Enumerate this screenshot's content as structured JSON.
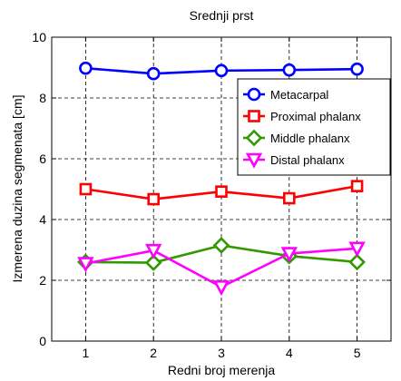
{
  "chart_data": {
    "type": "line",
    "title": "Srednji prst",
    "xlabel": "Redni broj merenja",
    "ylabel": "Izmerena duzina segmenata [cm]",
    "x": [
      1,
      2,
      3,
      4,
      5
    ],
    "xlim": [
      0.5,
      5.5
    ],
    "ylim": [
      0,
      10
    ],
    "xticks": [
      1,
      2,
      3,
      4,
      5
    ],
    "yticks": [
      0,
      2,
      4,
      6,
      8,
      10
    ],
    "grid": true,
    "legend_position": "top-right",
    "series": [
      {
        "name": "Metacarpal",
        "values": [
          8.98,
          8.8,
          8.9,
          8.92,
          8.95
        ],
        "color": "#0000ff",
        "marker": "circle"
      },
      {
        "name": "Proximal phalanx",
        "values": [
          5.0,
          4.67,
          4.92,
          4.7,
          5.1
        ],
        "color": "#ff0000",
        "marker": "square"
      },
      {
        "name": "Middle phalanx",
        "values": [
          2.6,
          2.58,
          3.15,
          2.8,
          2.6
        ],
        "color": "#339900",
        "marker": "diamond"
      },
      {
        "name": "Distal phalanx",
        "values": [
          2.55,
          2.98,
          1.78,
          2.88,
          3.05
        ],
        "color": "#ff00ff",
        "marker": "triangle-down"
      }
    ]
  }
}
